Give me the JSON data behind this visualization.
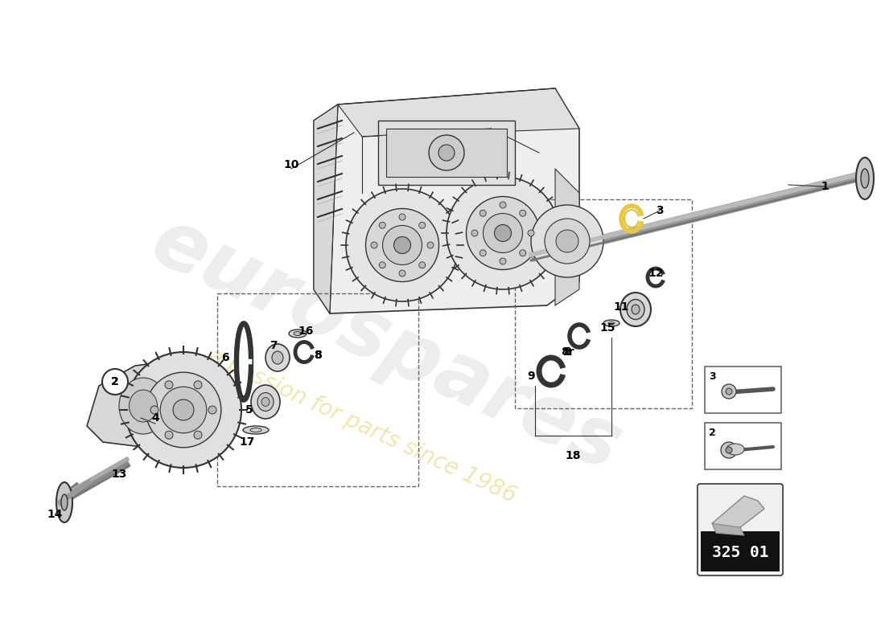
{
  "background_color": "#ffffff",
  "watermark_text": "eurospares",
  "watermark_subtext": "a passion for parts since 1986",
  "part_number_box": "325 01",
  "label_color": "#111111",
  "line_color": "#333333",
  "part_fill": "#e8e8e8",
  "part_edge": "#333333"
}
